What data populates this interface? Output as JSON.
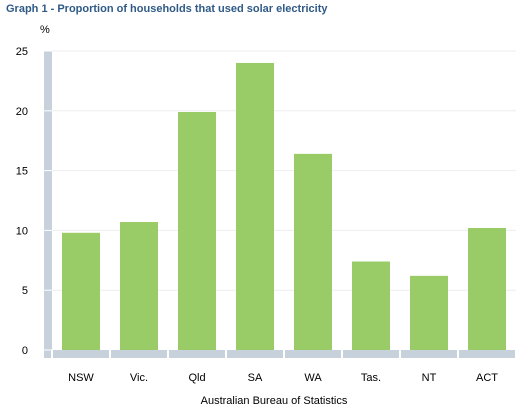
{
  "chart_data": {
    "type": "bar",
    "title": "Graph 1 - Proportion of households that used solar electricity",
    "ylabel": "%",
    "xlabel": "",
    "categories": [
      "NSW",
      "Vic.",
      "Qld",
      "SA",
      "WA",
      "Tas.",
      "NT",
      "ACT"
    ],
    "values": [
      9.8,
      10.7,
      19.9,
      24.0,
      16.4,
      7.4,
      6.2,
      10.2
    ],
    "ylim": [
      0,
      25
    ],
    "yticks": [
      "0",
      "5",
      "10",
      "15",
      "20",
      "25"
    ],
    "grid": true,
    "legend": "none",
    "source": "Australian Bureau of Statistics",
    "colors": {
      "bar": "#99cc66",
      "axis": "#c6d1dc",
      "grid": "#eeeeee",
      "title": "#2f5a87"
    }
  }
}
